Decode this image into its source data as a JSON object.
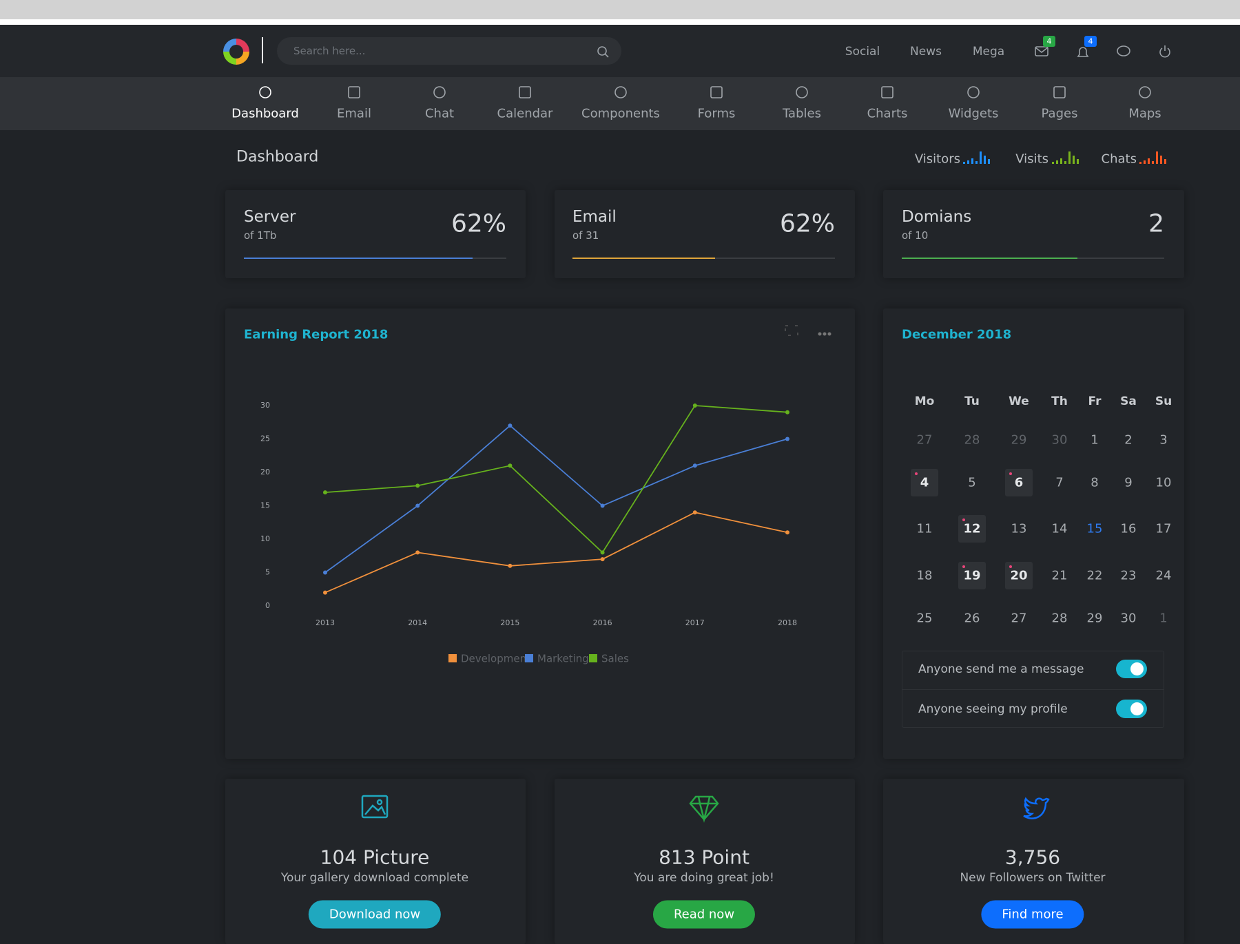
{
  "header": {
    "search_placeholder": "Search here...",
    "links": [
      "Social",
      "News",
      "Mega"
    ],
    "badges": [
      "4",
      "4"
    ]
  },
  "nav": [
    "Dashboard",
    "Email",
    "Chat",
    "Calendar",
    "Components",
    "Forms",
    "Tables",
    "Charts",
    "Widgets",
    "Pages",
    "Maps"
  ],
  "page_title": "Dashboard",
  "quick_stats": [
    "Visitors",
    "Visits",
    "Chats"
  ],
  "stats": [
    {
      "title": "Server",
      "subtitle": "of 1Tb",
      "value": "62%"
    },
    {
      "title": "Email",
      "subtitle": "of 31",
      "value": "62%"
    },
    {
      "title": "Domians",
      "subtitle": "of 10",
      "value": "2"
    }
  ],
  "chart_data": {
    "type": "line",
    "title": "Earning Report 2018",
    "categories": [
      "2013",
      "2014",
      "2015",
      "2016",
      "2017",
      "2018"
    ],
    "series": [
      {
        "name": "Development",
        "color": "#f0903c",
        "values": [
          2,
          8,
          6,
          7,
          14,
          11
        ]
      },
      {
        "name": "Marketing",
        "color": "#4a7fd6",
        "values": [
          5,
          15,
          27,
          15,
          21,
          25
        ]
      },
      {
        "name": "Sales",
        "color": "#66b21d",
        "values": [
          17,
          18,
          21,
          8,
          30,
          29
        ]
      }
    ],
    "ylim": [
      0,
      30
    ],
    "yticks": [
      0,
      5,
      10,
      15,
      20,
      25,
      30
    ],
    "grid": false
  },
  "calendar": {
    "title": "December 2018",
    "weekdays": [
      "Mo",
      "Tu",
      "We",
      "Th",
      "Fr",
      "Sa",
      "Su"
    ],
    "weeks": [
      [
        27,
        28,
        29,
        30,
        1,
        2,
        3
      ],
      [
        4,
        5,
        6,
        7,
        8,
        9,
        10
      ],
      [
        11,
        12,
        13,
        14,
        15,
        16,
        17
      ],
      [
        18,
        19,
        20,
        21,
        22,
        23,
        24
      ],
      [
        25,
        26,
        27,
        28,
        29,
        30,
        1
      ]
    ],
    "event_days": [
      4,
      6,
      12,
      19,
      20
    ],
    "today": 15
  },
  "settings": [
    "Anyone send me a message",
    "Anyone seeing my profile"
  ],
  "cards": [
    {
      "count": "104 Picture",
      "text": "Your gallery download complete",
      "button": "Download now",
      "color": "#1fa8bf"
    },
    {
      "count": "813 Point",
      "text": "You are doing great job!",
      "button": "Read now",
      "color": "#28a745"
    },
    {
      "count": "3,756",
      "text": "New Followers on Twitter",
      "button": "Find more",
      "color": "#0d6efd"
    }
  ]
}
